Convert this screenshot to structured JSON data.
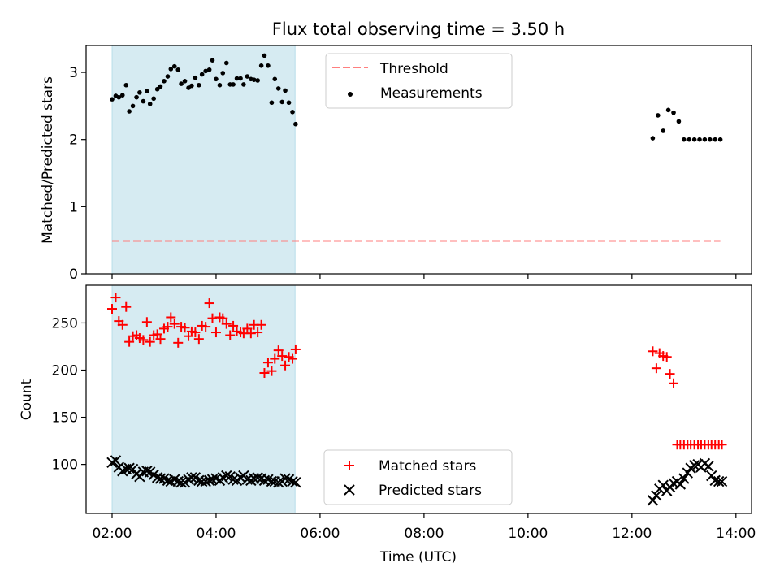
{
  "title": "Flux total observing time = 3.50 h",
  "chart_data": [
    {
      "type": "scatter",
      "ylabel": "Matched/Predicted stars",
      "xlim": [
        1.5,
        14.3
      ],
      "ylim": [
        0,
        3.4
      ],
      "yticks": [
        0,
        1,
        2,
        3
      ],
      "grid": false,
      "legend_position": "upper center",
      "highlight_span": {
        "x0": 2.0,
        "x1": 5.52,
        "color": "#add8e6"
      },
      "threshold": {
        "name": "Threshold",
        "value": 0.49,
        "x0": 2.0,
        "x1": 13.7,
        "color": "#ff7f7f",
        "style": "dashed"
      },
      "series": [
        {
          "name": "Measurements",
          "color": "#000000",
          "marker": "dot",
          "x": [
            2.0,
            2.07,
            2.13,
            2.2,
            2.27,
            2.33,
            2.4,
            2.47,
            2.53,
            2.6,
            2.67,
            2.73,
            2.8,
            2.87,
            2.93,
            3.0,
            3.07,
            3.13,
            3.2,
            3.27,
            3.33,
            3.4,
            3.47,
            3.53,
            3.6,
            3.67,
            3.73,
            3.8,
            3.87,
            3.93,
            4.0,
            4.07,
            4.13,
            4.2,
            4.27,
            4.33,
            4.4,
            4.47,
            4.53,
            4.6,
            4.67,
            4.73,
            4.8,
            4.87,
            4.93,
            5.0,
            5.07,
            5.13,
            5.2,
            5.27,
            5.33,
            5.4,
            5.47,
            5.53,
            12.4,
            12.5,
            12.6,
            12.7,
            12.8,
            12.9,
            13.0,
            13.1,
            13.2,
            13.3,
            13.4,
            13.5,
            13.6,
            13.7
          ],
          "y": [
            2.6,
            2.65,
            2.63,
            2.66,
            2.81,
            2.42,
            2.5,
            2.63,
            2.7,
            2.57,
            2.72,
            2.53,
            2.61,
            2.75,
            2.79,
            2.87,
            2.94,
            3.05,
            3.09,
            3.04,
            2.83,
            2.87,
            2.77,
            2.8,
            2.92,
            2.81,
            2.97,
            3.02,
            3.04,
            3.18,
            2.9,
            2.81,
            2.99,
            3.14,
            2.82,
            2.82,
            2.91,
            2.91,
            2.82,
            2.94,
            2.9,
            2.89,
            2.88,
            3.1,
            3.25,
            3.1,
            2.55,
            2.9,
            2.76,
            2.56,
            2.73,
            2.55,
            2.41,
            2.23,
            2.02,
            2.36,
            2.13,
            2.44,
            2.4,
            2.27,
            2.0,
            2.0,
            2.0,
            2.0,
            2.0,
            2.0,
            2.0,
            2.0
          ]
        }
      ]
    },
    {
      "type": "scatter",
      "xlabel": "Time (UTC)",
      "ylabel": "Count",
      "xlim": [
        1.5,
        14.3
      ],
      "ylim": [
        48,
        290
      ],
      "yticks": [
        100,
        150,
        200,
        250
      ],
      "xticks": [
        "02:00",
        "04:00",
        "06:00",
        "08:00",
        "10:00",
        "12:00",
        "14:00"
      ],
      "grid": false,
      "legend_position": "lower center",
      "highlight_span": {
        "x0": 2.0,
        "x1": 5.52,
        "color": "#add8e6"
      },
      "series": [
        {
          "name": "Matched stars",
          "color": "#ff0000",
          "marker": "plus",
          "x": [
            2.0,
            2.07,
            2.13,
            2.2,
            2.27,
            2.33,
            2.4,
            2.47,
            2.53,
            2.6,
            2.67,
            2.73,
            2.8,
            2.87,
            2.93,
            3.0,
            3.07,
            3.13,
            3.2,
            3.27,
            3.33,
            3.4,
            3.47,
            3.53,
            3.6,
            3.67,
            3.73,
            3.8,
            3.87,
            3.93,
            4.0,
            4.07,
            4.13,
            4.2,
            4.27,
            4.33,
            4.4,
            4.47,
            4.53,
            4.6,
            4.67,
            4.73,
            4.8,
            4.87,
            4.93,
            5.0,
            5.07,
            5.13,
            5.2,
            5.27,
            5.33,
            5.4,
            5.47,
            5.53,
            12.4,
            12.47,
            12.53,
            12.6,
            12.67,
            12.73,
            12.8,
            12.87,
            12.93,
            13.0,
            13.07,
            13.13,
            13.2,
            13.27,
            13.33,
            13.4,
            13.47,
            13.53,
            13.6,
            13.67,
            13.73
          ],
          "y": [
            265,
            277,
            252,
            248,
            267,
            230,
            236,
            237,
            234,
            232,
            251,
            230,
            237,
            238,
            233,
            244,
            246,
            256,
            249,
            229,
            246,
            245,
            236,
            241,
            240,
            233,
            247,
            246,
            271,
            255,
            240,
            256,
            255,
            249,
            237,
            247,
            241,
            240,
            239,
            244,
            239,
            248,
            240,
            248,
            197,
            208,
            199,
            212,
            221,
            215,
            205,
            214,
            212,
            222,
            220,
            202,
            218,
            215,
            214,
            196,
            186,
            121,
            121,
            121,
            121,
            121,
            121,
            121,
            121,
            121,
            121,
            121,
            121,
            121,
            121
          ]
        },
        {
          "name": "Predicted stars",
          "color": "#000000",
          "marker": "x",
          "x": [
            2.0,
            2.07,
            2.13,
            2.2,
            2.27,
            2.33,
            2.4,
            2.47,
            2.53,
            2.6,
            2.67,
            2.73,
            2.8,
            2.87,
            2.93,
            3.0,
            3.07,
            3.13,
            3.2,
            3.27,
            3.33,
            3.4,
            3.47,
            3.53,
            3.6,
            3.67,
            3.73,
            3.8,
            3.87,
            3.93,
            4.0,
            4.07,
            4.13,
            4.2,
            4.27,
            4.33,
            4.4,
            4.47,
            4.53,
            4.6,
            4.67,
            4.73,
            4.8,
            4.87,
            4.93,
            5.0,
            5.07,
            5.13,
            5.2,
            5.27,
            5.33,
            5.4,
            5.47,
            5.53,
            12.4,
            12.47,
            12.53,
            12.6,
            12.67,
            12.73,
            12.8,
            12.87,
            12.93,
            13.0,
            13.07,
            13.13,
            13.2,
            13.27,
            13.33,
            13.4,
            13.47,
            13.53,
            13.6,
            13.67,
            13.73
          ],
          "y": [
            102,
            104,
            97,
            93,
            95,
            96,
            95,
            90,
            87,
            92,
            93,
            92,
            89,
            86,
            85,
            85,
            83,
            82,
            84,
            82,
            81,
            81,
            84,
            86,
            86,
            83,
            82,
            82,
            83,
            84,
            85,
            83,
            86,
            88,
            87,
            84,
            83,
            86,
            88,
            84,
            83,
            85,
            86,
            85,
            83,
            84,
            82,
            82,
            81,
            82,
            85,
            84,
            82,
            81,
            62,
            67,
            74,
            78,
            72,
            76,
            80,
            82,
            79,
            85,
            91,
            96,
            99,
            100,
            97,
            101,
            98,
            88,
            83,
            82,
            82
          ]
        }
      ]
    }
  ]
}
